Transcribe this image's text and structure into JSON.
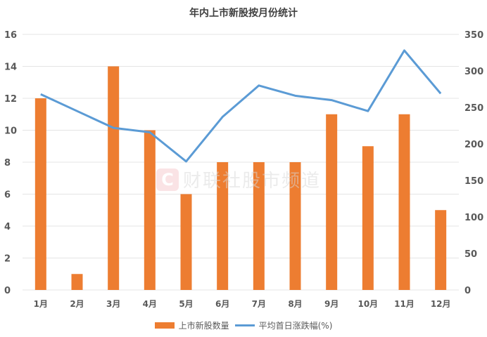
{
  "title": "年内上市新股按月份统计",
  "watermark": {
    "logo": "C",
    "text": "财联社股市频道"
  },
  "legend": {
    "bar_label": "上市新股数量",
    "line_label": "平均首日涨跌幅(%)"
  },
  "colors": {
    "bar": "#ed7d31",
    "line": "#5b9bd5",
    "grid": "#e4e4e4",
    "text": "#595959"
  },
  "chart_data": {
    "type": "bar+line",
    "title": "年内上市新股按月份统计",
    "categories": [
      "1月",
      "2月",
      "3月",
      "4月",
      "5月",
      "6月",
      "7月",
      "8月",
      "9月",
      "10月",
      "11月",
      "12月"
    ],
    "series": [
      {
        "name": "上市新股数量",
        "type": "bar",
        "axis": "left",
        "values": [
          12,
          1,
          14,
          10,
          6,
          8,
          8,
          8,
          11,
          9,
          11,
          5
        ]
      },
      {
        "name": "平均首日涨跌幅(%)",
        "type": "line",
        "axis": "right",
        "values": [
          268,
          245,
          222,
          216,
          176,
          237,
          280,
          266,
          260,
          245,
          328,
          269
        ]
      }
    ],
    "left_axis": {
      "ylim": [
        0,
        16
      ],
      "ticks": [
        0,
        2,
        4,
        6,
        8,
        10,
        12,
        14,
        16
      ]
    },
    "right_axis": {
      "ylim": [
        0,
        350
      ],
      "ticks": [
        0,
        50,
        100,
        150,
        200,
        250,
        300,
        350
      ]
    },
    "xlabel": "",
    "ylabel": "",
    "grid": true,
    "legend_position": "bottom"
  }
}
